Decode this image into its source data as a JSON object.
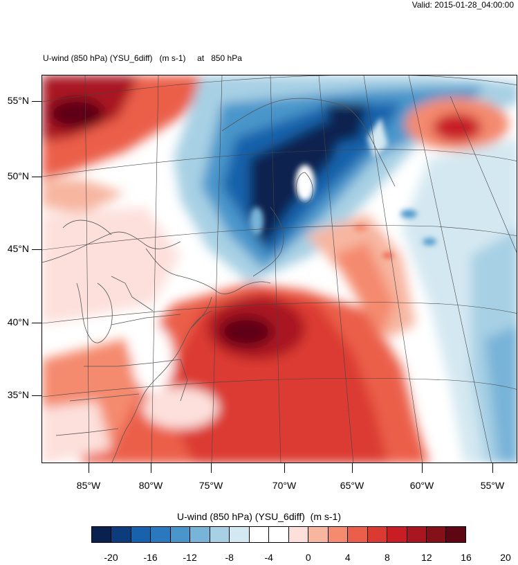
{
  "header": {
    "valid_time": "Valid: 2015-01-28_04:00:00",
    "plot_title": "U-wind (850 hPa) (YSU_6diff)   (m s-1)     at   850 hPa"
  },
  "map": {
    "lat_labels": [
      "55°N",
      "50°N",
      "45°N",
      "40°N",
      "35°N"
    ],
    "lon_labels": [
      "85°W",
      "80°W",
      "75°W",
      "70°W",
      "65°W",
      "60°W",
      "55°W"
    ]
  },
  "colorbar": {
    "title": "U-wind (850 hPa) (YSU_6diff)  (m s-1)",
    "labels": [
      "-20",
      "-16",
      "-12",
      "-8",
      "-4",
      "0",
      "4",
      "8",
      "12",
      "16",
      "20"
    ],
    "colors": [
      "#08214f",
      "#0b3c7c",
      "#1762ab",
      "#2a78bd",
      "#4a96cb",
      "#78b3d8",
      "#a7d0e4",
      "#d4e8f1",
      "#ffffff",
      "#ffffff",
      "#fde0dc",
      "#f7b6a0",
      "#f48a6e",
      "#eb5f4a",
      "#db3a31",
      "#c81d25",
      "#a91620",
      "#84101a",
      "#5e0613"
    ]
  }
}
